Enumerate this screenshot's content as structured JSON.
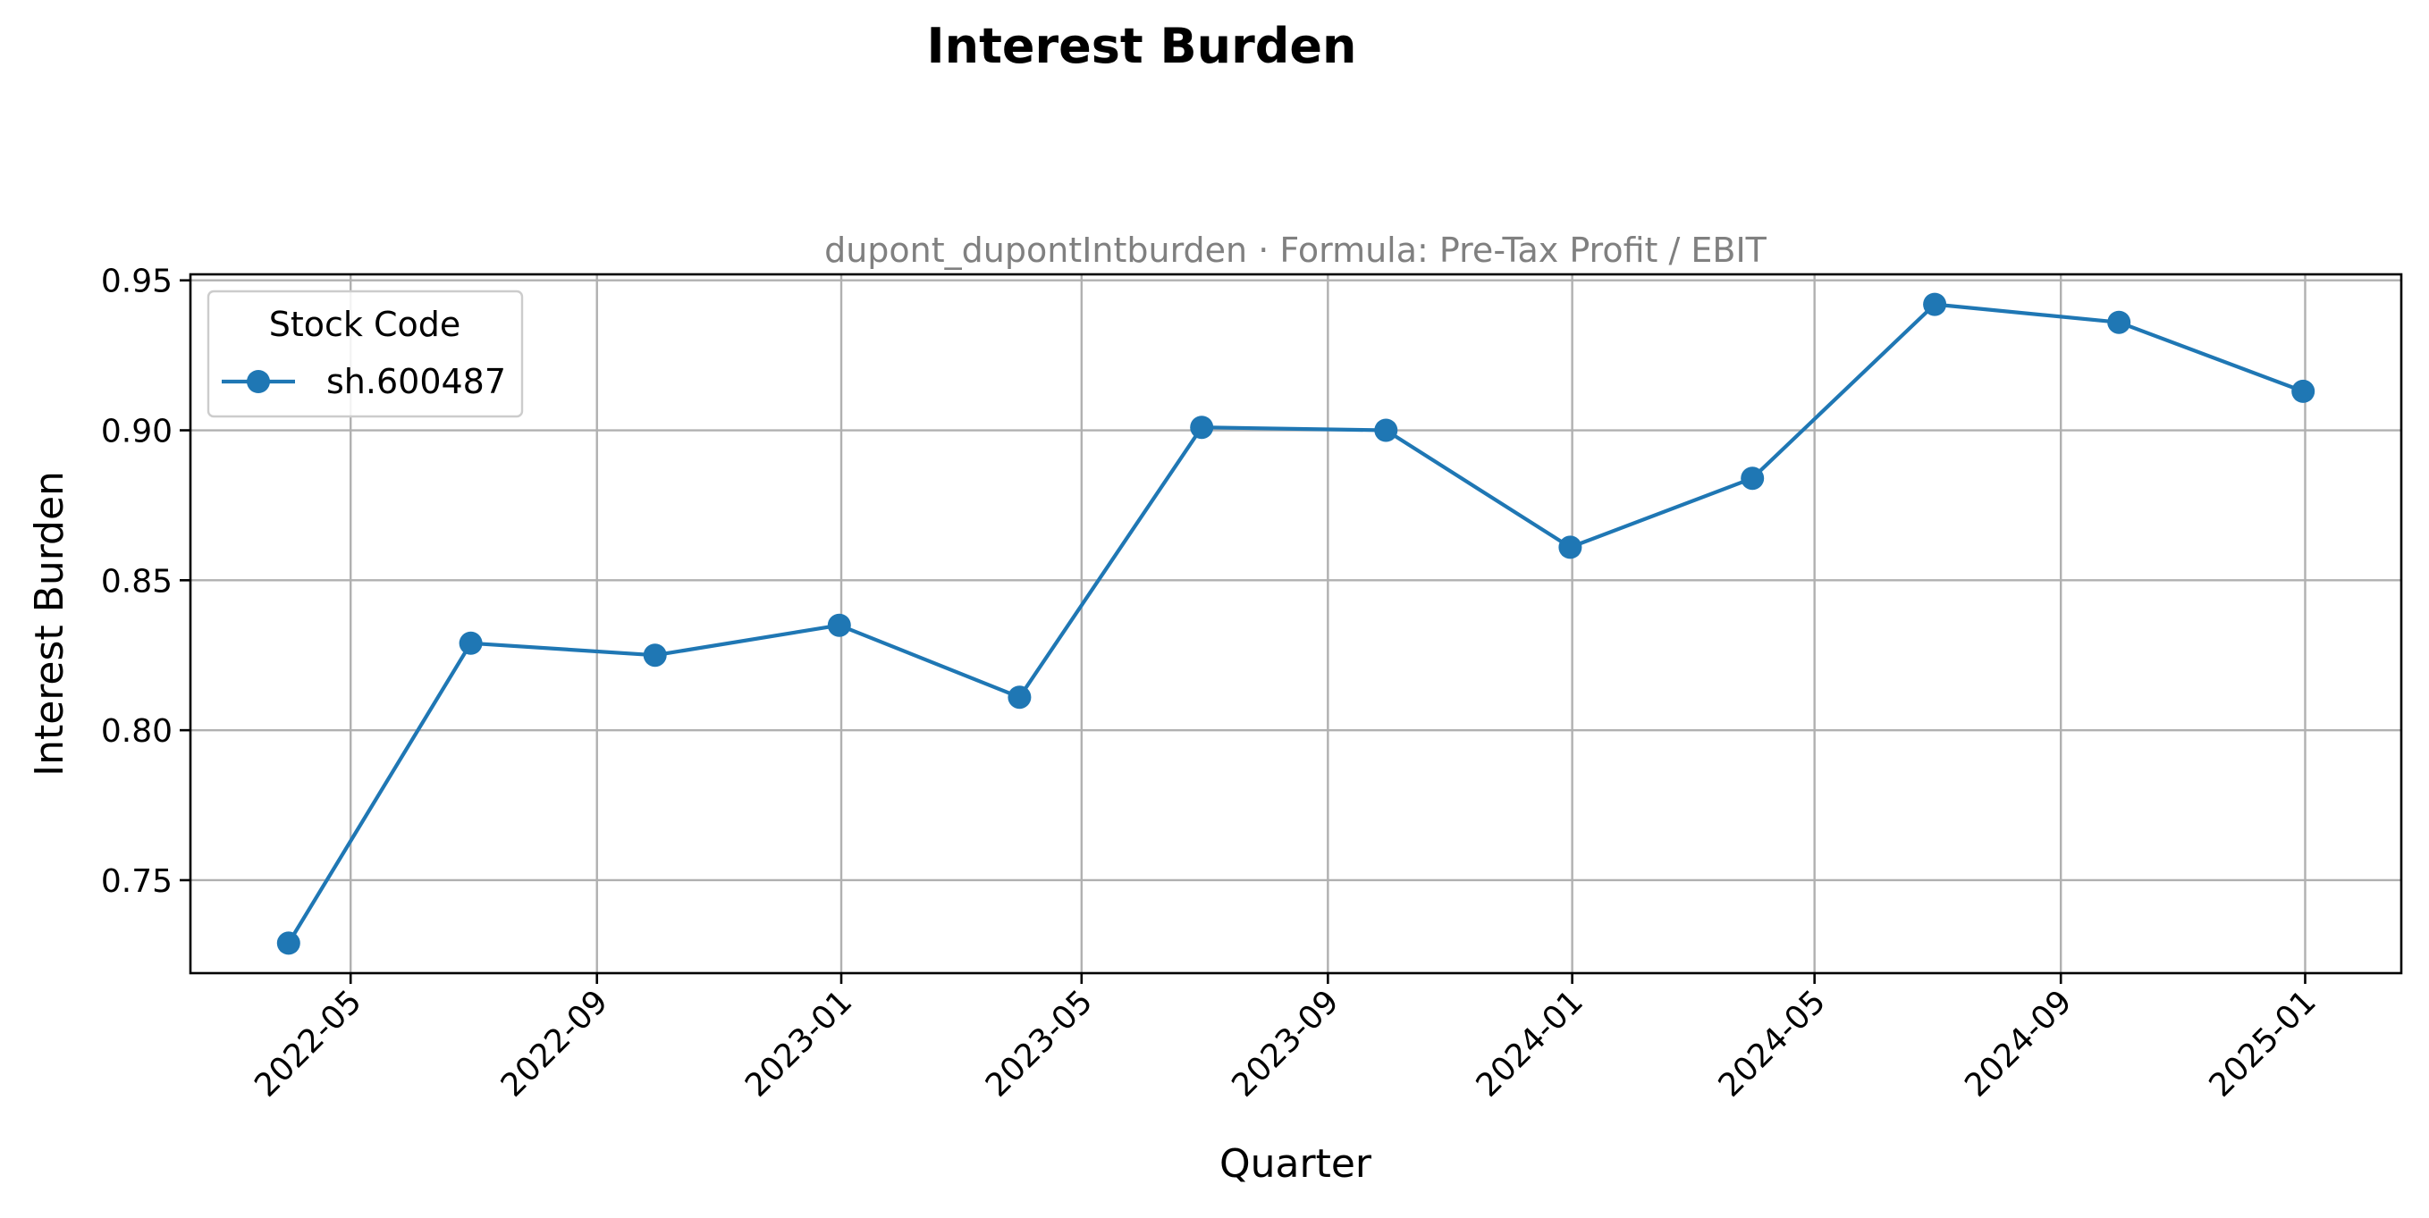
{
  "chart_data": {
    "type": "line",
    "title": "Interest Burden",
    "subtitle": "dupont_dupontIntburden · Formula: Pre-Tax Profit / EBIT",
    "xlabel": "Quarter",
    "ylabel": "Interest Burden",
    "ylim": [
      0.719,
      0.952
    ],
    "xlim": [
      "2022-02-10",
      "2025-02-18"
    ],
    "x_ticks": [
      "2022-05",
      "2022-09",
      "2023-01",
      "2023-05",
      "2023-09",
      "2024-01",
      "2024-05",
      "2024-09",
      "2025-01"
    ],
    "y_ticks": [
      "0.75",
      "0.80",
      "0.85",
      "0.90",
      "0.95"
    ],
    "grid": true,
    "legend": {
      "title": "Stock Code",
      "position": "top-left"
    },
    "color": "#1f77b4",
    "series": [
      {
        "name": "sh.600487",
        "x": [
          "2022-03-31",
          "2022-06-30",
          "2022-09-30",
          "2022-12-31",
          "2023-03-31",
          "2023-06-30",
          "2023-09-30",
          "2023-12-31",
          "2024-03-31",
          "2024-06-30",
          "2024-09-30",
          "2024-12-31"
        ],
        "y": [
          0.729,
          0.829,
          0.825,
          0.835,
          0.811,
          0.901,
          0.9,
          0.861,
          0.884,
          0.942,
          0.936,
          0.913
        ]
      }
    ]
  }
}
